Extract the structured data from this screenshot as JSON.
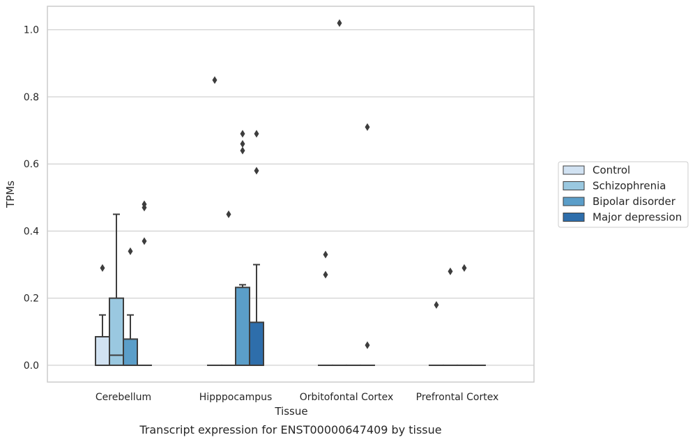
{
  "caption": "Transcript expression for ENST00000647409 by tissue",
  "chart_data": {
    "type": "box",
    "xlabel": "Tissue",
    "ylabel": "TPMs",
    "ylim": [
      -0.05,
      1.07
    ],
    "yticks": [
      "0.0",
      "0.2",
      "0.4",
      "0.6",
      "0.8",
      "1.0"
    ],
    "grid": "horizontal",
    "legend_position": "right",
    "categories": [
      "Cerebellum",
      "Hipppocampus",
      "Orbitofontal Cortex",
      "Prefrontal Cortex"
    ],
    "colors": [
      "#d1e2f2",
      "#9ac8e0",
      "#5b9ec9",
      "#2e6eab"
    ],
    "series": [
      {
        "name": "Control",
        "boxes": [
          {
            "q1": 0.0,
            "median": 0.0,
            "q3": 0.085,
            "whislo": 0.0,
            "whishi": 0.15,
            "fliers": [
              0.29
            ]
          },
          {
            "q1": 0.0,
            "median": 0.0,
            "q3": 0.0,
            "whislo": 0.0,
            "whishi": 0.0,
            "fliers": [
              0.85
            ]
          },
          {
            "q1": 0.0,
            "median": 0.0,
            "q3": 0.0,
            "whislo": 0.0,
            "whishi": 0.0,
            "fliers": [
              0.33,
              0.27
            ]
          },
          {
            "q1": 0.0,
            "median": 0.0,
            "q3": 0.0,
            "whislo": 0.0,
            "whishi": 0.0,
            "fliers": [
              0.18
            ]
          }
        ]
      },
      {
        "name": "Schizophrenia",
        "boxes": [
          {
            "q1": 0.0,
            "median": 0.03,
            "q3": 0.2,
            "whislo": 0.0,
            "whishi": 0.45,
            "fliers": []
          },
          {
            "q1": 0.0,
            "median": 0.0,
            "q3": 0.0,
            "whislo": 0.0,
            "whishi": 0.0,
            "fliers": [
              0.45
            ]
          },
          {
            "q1": 0.0,
            "median": 0.0,
            "q3": 0.0,
            "whislo": 0.0,
            "whishi": 0.0,
            "fliers": [
              1.02
            ]
          },
          {
            "q1": 0.0,
            "median": 0.0,
            "q3": 0.0,
            "whislo": 0.0,
            "whishi": 0.0,
            "fliers": [
              0.28
            ]
          }
        ]
      },
      {
        "name": "Bipolar disorder",
        "boxes": [
          {
            "q1": 0.0,
            "median": 0.0,
            "q3": 0.078,
            "whislo": 0.0,
            "whishi": 0.15,
            "fliers": [
              0.34
            ]
          },
          {
            "q1": 0.0,
            "median": 0.0,
            "q3": 0.232,
            "whislo": 0.0,
            "whishi": 0.24,
            "fliers": [
              0.69,
              0.66,
              0.64
            ]
          },
          {
            "q1": 0.0,
            "median": 0.0,
            "q3": 0.0,
            "whislo": 0.0,
            "whishi": 0.0,
            "fliers": []
          },
          {
            "q1": 0.0,
            "median": 0.0,
            "q3": 0.0,
            "whislo": 0.0,
            "whishi": 0.0,
            "fliers": [
              0.29
            ]
          }
        ]
      },
      {
        "name": "Major depression",
        "boxes": [
          {
            "q1": 0.0,
            "median": 0.0,
            "q3": 0.0,
            "whislo": 0.0,
            "whishi": 0.0,
            "fliers": [
              0.48,
              0.47,
              0.37
            ]
          },
          {
            "q1": 0.0,
            "median": 0.0,
            "q3": 0.128,
            "whislo": 0.0,
            "whishi": 0.3,
            "fliers": [
              0.69,
              0.58
            ]
          },
          {
            "q1": 0.0,
            "median": 0.0,
            "q3": 0.0,
            "whislo": 0.0,
            "whishi": 0.0,
            "fliers": [
              0.71,
              0.06
            ]
          },
          {
            "q1": 0.0,
            "median": 0.0,
            "q3": 0.0,
            "whislo": 0.0,
            "whishi": 0.0,
            "fliers": []
          }
        ]
      }
    ]
  }
}
